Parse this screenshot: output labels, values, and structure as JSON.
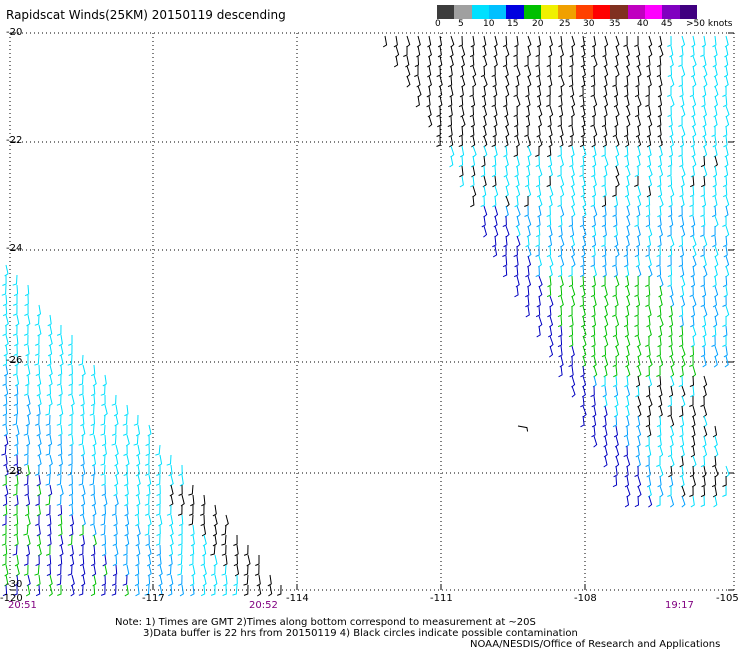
{
  "title": "Rapidscat Winds(25KM) 20150119 descending",
  "legend": {
    "labels": [
      "0",
      "5",
      "10",
      "15",
      "20",
      "25",
      "30",
      "35",
      "40",
      "45",
      ">50 knots"
    ],
    "colors": [
      "#3c3c3c",
      "#a0a0a0",
      "#00e0ff",
      "#00c0ff",
      "#0000e0",
      "#00c000",
      "#f0f000",
      "#f0a000",
      "#ff4000",
      "#ff0000",
      "#803020",
      "#c000c0",
      "#ff00ff",
      "#8000c0",
      "#400080"
    ]
  },
  "lat_labels": [
    "-20",
    "-22",
    "-24",
    "-26",
    "-28",
    "-30"
  ],
  "lon_labels": [
    "-120",
    "-117",
    "-114",
    "-111",
    "-108",
    "-105"
  ],
  "time_labels": [
    "20:51",
    "20:52",
    "19:17"
  ],
  "notes": {
    "line1": "Note: 1) Times are GMT 2)Times along bottom correspond to measurement at ~20S",
    "line2": "3)Data buffer is 22 hrs from 20150119 4) Black circles indicate possible contamination",
    "credit": "NOAA/NESDIS/Office of Research and Applications"
  },
  "colors": {
    "grid": "#000000",
    "wind_light": "#00e0ff",
    "wind_mid": "#00a0ff",
    "wind_blue": "#0000c0",
    "wind_green": "#00c000",
    "wind_black": "#000000"
  }
}
